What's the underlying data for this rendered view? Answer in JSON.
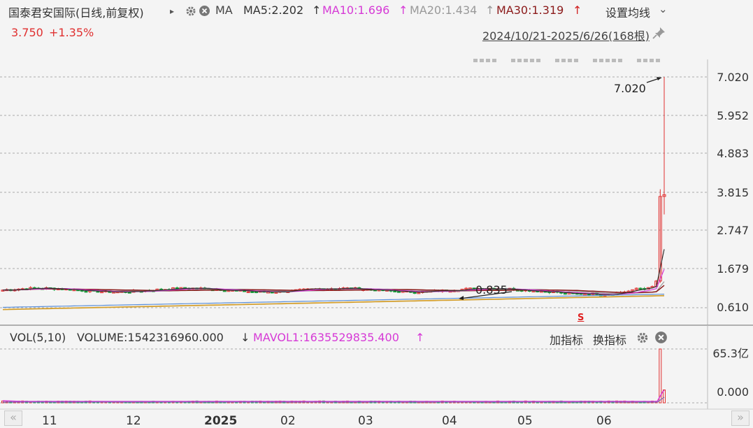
{
  "header": {
    "stock_name": "国泰君安国际(日线,前复权)",
    "play_icon": "▸",
    "ma_label": "MA",
    "ma5": "MA5:2.202",
    "ma5_arrow": "↑",
    "ma10": "MA10:1.696",
    "ma10_arrow": "↑",
    "ma20": "MA20:1.434",
    "ma20_arrow": "↑",
    "ma30": "MA30:1.319",
    "ma30_arrow": "↑",
    "settings_label": "设置均线",
    "settings_chevron": "⌄"
  },
  "quote": {
    "price": "3.750",
    "change_pct": "+1.35%"
  },
  "range": {
    "text": "2024/10/21-2025/6/26(168根)"
  },
  "price_axis": [
    "7.020",
    "5.952",
    "4.883",
    "3.815",
    "2.747",
    "1.679",
    "0.610"
  ],
  "annotations": {
    "high": "7.020",
    "low": "0.835",
    "signal": "S"
  },
  "volume": {
    "label": "VOL(5,10)",
    "volume_text": "VOLUME:1542316960.000",
    "volume_arrow": "↓",
    "mavol": "MAVOL1:1635529835.400",
    "mavol_arrow": "↑",
    "add_indicator": "加指标",
    "switch_indicator": "换指标",
    "axis": [
      "65.3亿",
      "0.000"
    ]
  },
  "x_axis": [
    "11",
    "12",
    "2025",
    "02",
    "03",
    "04",
    "05",
    "06"
  ],
  "nav": {
    "left": "«",
    "right": "»"
  },
  "colors": {
    "ma5": "#333333",
    "ma10": "#d63ad6",
    "ma20": "#999999",
    "ma30": "#8b1a1a",
    "up": "#e03030",
    "down": "#1a9a3a",
    "blue_line": "#5b8fd8",
    "gold_line": "#d4a030"
  },
  "icons": [
    "play-icon",
    "gear-icon",
    "close-icon",
    "pin-icon",
    "chevron-down-icon",
    "arrow-left-icon",
    "arrow-right-icon"
  ]
}
